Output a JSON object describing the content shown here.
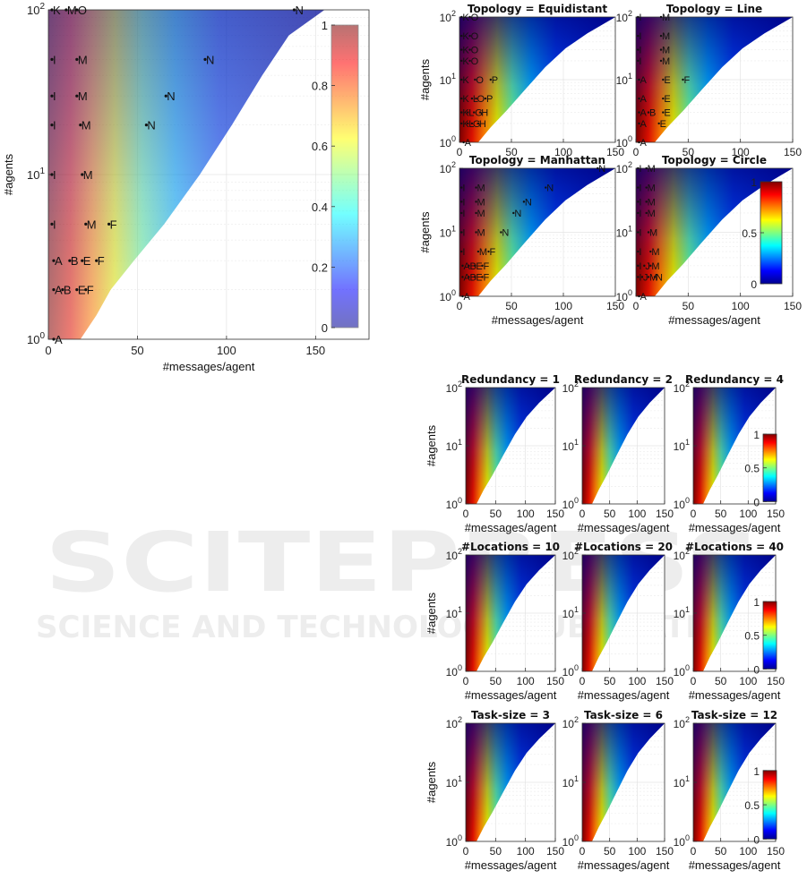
{
  "watermark": {
    "main": "SCITEPRESS",
    "sub": "SCIENCE AND TECHNOLOGY PUBLICATIONS"
  },
  "axis_labels": {
    "x": "#messages/agent",
    "y": "#agents"
  },
  "colors": {
    "empty": "#ffffff",
    "low": "#00008f",
    "high": "#800000"
  },
  "chart_data": [
    {
      "type": "heatmap",
      "colormap": "jet-transparent",
      "alpha": 0.55,
      "title": "",
      "xlabel": "#messages/agent",
      "ylabel": "#agents",
      "xlim": [
        0,
        180
      ],
      "ylim": [
        1,
        100
      ],
      "yscale": "log",
      "xticks": [
        0,
        50,
        100,
        150
      ],
      "yticks": [
        1,
        10,
        100
      ],
      "boundary": {
        "x": [
          18,
          27,
          35,
          48,
          65,
          85,
          103,
          120,
          135,
          155
        ],
        "y": [
          1,
          1.4,
          2,
          3,
          5,
          10,
          20,
          40,
          70,
          100
        ]
      },
      "colorbar": {
        "ticks": [
          0,
          0.2,
          0.4,
          0.6,
          0.8,
          1
        ],
        "ticklabels": [
          "0",
          "0.2",
          "0.4",
          "0.6",
          "0.8",
          "1"
        ]
      },
      "points": [
        {
          "label": "K",
          "x": 2,
          "y": 100
        },
        {
          "label": "M",
          "x": 10,
          "y": 100
        },
        {
          "label": "O",
          "x": 16,
          "y": 100
        },
        {
          "label": "N",
          "x": 138,
          "y": 100
        },
        {
          "label": "I",
          "x": 2,
          "y": 50
        },
        {
          "label": "M",
          "x": 16,
          "y": 50
        },
        {
          "label": "N",
          "x": 88,
          "y": 50
        },
        {
          "label": "I",
          "x": 2,
          "y": 30
        },
        {
          "label": "M",
          "x": 16,
          "y": 30
        },
        {
          "label": "N",
          "x": 66,
          "y": 30
        },
        {
          "label": "I",
          "x": 2,
          "y": 20
        },
        {
          "label": "M",
          "x": 18,
          "y": 20
        },
        {
          "label": "N",
          "x": 55,
          "y": 20
        },
        {
          "label": "I",
          "x": 2,
          "y": 10
        },
        {
          "label": "M",
          "x": 19,
          "y": 10
        },
        {
          "label": "I",
          "x": 2,
          "y": 5
        },
        {
          "label": "M",
          "x": 21,
          "y": 5
        },
        {
          "label": "F",
          "x": 34,
          "y": 5
        },
        {
          "label": "A",
          "x": 3,
          "y": 3
        },
        {
          "label": "B",
          "x": 12,
          "y": 3
        },
        {
          "label": "E",
          "x": 19,
          "y": 3
        },
        {
          "label": "F",
          "x": 27,
          "y": 3
        },
        {
          "label": "A",
          "x": 3,
          "y": 2
        },
        {
          "label": "B",
          "x": 8,
          "y": 2
        },
        {
          "label": "E",
          "x": 16,
          "y": 2
        },
        {
          "label": "F",
          "x": 21,
          "y": 2
        },
        {
          "label": "A",
          "x": 3,
          "y": 1
        }
      ]
    },
    {
      "type": "heatmap",
      "colormap": "jet",
      "title": "Topology = Equidistant",
      "xlabel": "",
      "ylabel": "#agents",
      "xlim": [
        0,
        150
      ],
      "ylim": [
        1,
        100
      ],
      "yscale": "log",
      "xticks": [
        0,
        50,
        100,
        150
      ],
      "yticks": [
        1,
        10,
        100
      ],
      "points": [
        {
          "label": "K",
          "x": 2,
          "y": 100
        },
        {
          "label": "O",
          "x": 10,
          "y": 100
        },
        {
          "label": "K",
          "x": 2,
          "y": 50
        },
        {
          "label": "O",
          "x": 10,
          "y": 50
        },
        {
          "label": "K",
          "x": 2,
          "y": 30
        },
        {
          "label": "O",
          "x": 10,
          "y": 30
        },
        {
          "label": "K",
          "x": 2,
          "y": 20
        },
        {
          "label": "O",
          "x": 10,
          "y": 20
        },
        {
          "label": "K",
          "x": 2,
          "y": 10
        },
        {
          "label": "O",
          "x": 15,
          "y": 10
        },
        {
          "label": "P",
          "x": 30,
          "y": 10
        },
        {
          "label": "K",
          "x": 2,
          "y": 5
        },
        {
          "label": "L",
          "x": 12,
          "y": 5
        },
        {
          "label": "O",
          "x": 16,
          "y": 5
        },
        {
          "label": "P",
          "x": 25,
          "y": 5
        },
        {
          "label": "K",
          "x": 2,
          "y": 3
        },
        {
          "label": "L",
          "x": 8,
          "y": 3
        },
        {
          "label": "G",
          "x": 14,
          "y": 3
        },
        {
          "label": "H",
          "x": 20,
          "y": 3
        },
        {
          "label": "K",
          "x": 2,
          "y": 2
        },
        {
          "label": "L",
          "x": 8,
          "y": 2
        },
        {
          "label": "G",
          "x": 12,
          "y": 2
        },
        {
          "label": "H",
          "x": 18,
          "y": 2
        },
        {
          "label": "A",
          "x": 4,
          "y": 1
        }
      ]
    },
    {
      "type": "heatmap",
      "colormap": "jet",
      "title": "Topology = Line",
      "xlabel": "",
      "ylabel": "",
      "xlim": [
        0,
        150
      ],
      "ylim": [
        1,
        100
      ],
      "yscale": "log",
      "xticks": [
        0,
        50,
        100,
        150
      ],
      "yticks": [
        1,
        10,
        100
      ],
      "points": [
        {
          "label": "I",
          "x": 2,
          "y": 100
        },
        {
          "label": "M",
          "x": 24,
          "y": 100
        },
        {
          "label": "I",
          "x": 2,
          "y": 50
        },
        {
          "label": "M",
          "x": 24,
          "y": 50
        },
        {
          "label": "I",
          "x": 2,
          "y": 30
        },
        {
          "label": "M",
          "x": 24,
          "y": 30
        },
        {
          "label": "I",
          "x": 2,
          "y": 20
        },
        {
          "label": "M",
          "x": 24,
          "y": 20
        },
        {
          "label": "A",
          "x": 3,
          "y": 10
        },
        {
          "label": "E",
          "x": 26,
          "y": 10
        },
        {
          "label": "F",
          "x": 45,
          "y": 10
        },
        {
          "label": "A",
          "x": 3,
          "y": 5
        },
        {
          "label": "E",
          "x": 26,
          "y": 5
        },
        {
          "label": "A",
          "x": 3,
          "y": 3
        },
        {
          "label": "B",
          "x": 12,
          "y": 3
        },
        {
          "label": "E",
          "x": 26,
          "y": 3
        },
        {
          "label": "A",
          "x": 3,
          "y": 2
        },
        {
          "label": "E",
          "x": 22,
          "y": 2
        },
        {
          "label": "A",
          "x": 3,
          "y": 1
        }
      ]
    },
    {
      "type": "heatmap",
      "colormap": "jet",
      "title": "Topology = Manhattan",
      "xlabel": "#messages/agent",
      "ylabel": "#agents",
      "xlim": [
        0,
        150
      ],
      "ylim": [
        1,
        100
      ],
      "yscale": "log",
      "xticks": [
        0,
        50,
        100,
        150
      ],
      "yticks": [
        1,
        10,
        100
      ],
      "points": [
        {
          "label": "N",
          "x": 133,
          "y": 100
        },
        {
          "label": "I",
          "x": 2,
          "y": 50
        },
        {
          "label": "M",
          "x": 16,
          "y": 50
        },
        {
          "label": "N",
          "x": 83,
          "y": 50
        },
        {
          "label": "I",
          "x": 2,
          "y": 30
        },
        {
          "label": "M",
          "x": 16,
          "y": 30
        },
        {
          "label": "N",
          "x": 62,
          "y": 30
        },
        {
          "label": "I",
          "x": 2,
          "y": 20
        },
        {
          "label": "M",
          "x": 16,
          "y": 20
        },
        {
          "label": "N",
          "x": 52,
          "y": 20
        },
        {
          "label": "I",
          "x": 2,
          "y": 10
        },
        {
          "label": "M",
          "x": 16,
          "y": 10
        },
        {
          "label": "N",
          "x": 40,
          "y": 10
        },
        {
          "label": "I",
          "x": 2,
          "y": 5
        },
        {
          "label": "M",
          "x": 18,
          "y": 5
        },
        {
          "label": "F",
          "x": 28,
          "y": 5
        },
        {
          "label": "A",
          "x": 3,
          "y": 3
        },
        {
          "label": "B",
          "x": 9,
          "y": 3
        },
        {
          "label": "E",
          "x": 15,
          "y": 3
        },
        {
          "label": "F",
          "x": 22,
          "y": 3
        },
        {
          "label": "A",
          "x": 3,
          "y": 2
        },
        {
          "label": "B",
          "x": 9,
          "y": 2
        },
        {
          "label": "E",
          "x": 15,
          "y": 2
        },
        {
          "label": "F",
          "x": 22,
          "y": 2
        },
        {
          "label": "A",
          "x": 3,
          "y": 1
        }
      ]
    },
    {
      "type": "heatmap",
      "colormap": "jet",
      "title": "Topology = Circle",
      "xlabel": "#messages/agent",
      "ylabel": "",
      "xlim": [
        0,
        150
      ],
      "ylim": [
        1,
        100
      ],
      "yscale": "log",
      "xticks": [
        0,
        50,
        100,
        150
      ],
      "yticks": [
        1,
        10,
        100
      ],
      "colorbar": {
        "ticks": [
          0,
          0.5,
          1
        ],
        "ticklabels": [
          "0",
          "0.5",
          "1"
        ]
      },
      "points": [
        {
          "label": "I",
          "x": 2,
          "y": 100
        },
        {
          "label": "M",
          "x": 10,
          "y": 100
        },
        {
          "label": "I",
          "x": 2,
          "y": 50
        },
        {
          "label": "M",
          "x": 10,
          "y": 50
        },
        {
          "label": "I",
          "x": 2,
          "y": 30
        },
        {
          "label": "M",
          "x": 10,
          "y": 30
        },
        {
          "label": "I",
          "x": 2,
          "y": 20
        },
        {
          "label": "M",
          "x": 10,
          "y": 20
        },
        {
          "label": "I",
          "x": 2,
          "y": 10
        },
        {
          "label": "M",
          "x": 12,
          "y": 10
        },
        {
          "label": "I",
          "x": 2,
          "y": 5
        },
        {
          "label": "M",
          "x": 14,
          "y": 5
        },
        {
          "label": "I",
          "x": 2,
          "y": 3
        },
        {
          "label": "J",
          "x": 8,
          "y": 3
        },
        {
          "label": "M",
          "x": 14,
          "y": 3
        },
        {
          "label": "I",
          "x": 2,
          "y": 2
        },
        {
          "label": "J",
          "x": 6,
          "y": 2
        },
        {
          "label": "M",
          "x": 12,
          "y": 2
        },
        {
          "label": "N",
          "x": 18,
          "y": 2
        },
        {
          "label": "A",
          "x": 3,
          "y": 1
        }
      ]
    },
    {
      "type": "heatmap",
      "colormap": "jet",
      "title": "Redundancy = 1",
      "xlabel": "#messages/agent",
      "ylabel": "#agents",
      "xlim": [
        0,
        150
      ],
      "ylim": [
        1,
        100
      ],
      "yscale": "log",
      "xticks": [
        0,
        50,
        100,
        150
      ],
      "yticks": [
        1,
        10,
        100
      ]
    },
    {
      "type": "heatmap",
      "colormap": "jet",
      "title": "Redundancy = 2",
      "xlabel": "#messages/agent",
      "ylabel": "",
      "xlim": [
        0,
        150
      ],
      "ylim": [
        1,
        100
      ],
      "yscale": "log",
      "xticks": [
        0,
        50,
        100,
        150
      ],
      "yticks": [
        1,
        10,
        100
      ]
    },
    {
      "type": "heatmap",
      "colormap": "jet",
      "title": "Redundancy = 4",
      "xlabel": "#messages/agent",
      "ylabel": "",
      "xlim": [
        0,
        150
      ],
      "ylim": [
        1,
        100
      ],
      "yscale": "log",
      "xticks": [
        0,
        50,
        100,
        150
      ],
      "yticks": [
        1,
        10,
        100
      ],
      "colorbar": {
        "ticks": [
          0,
          0.5,
          1
        ],
        "ticklabels": [
          "0",
          "0.5",
          "1"
        ]
      }
    },
    {
      "type": "heatmap",
      "colormap": "jet",
      "title": "#Locations = 10",
      "xlabel": "#messages/agent",
      "ylabel": "#agents",
      "xlim": [
        0,
        150
      ],
      "ylim": [
        1,
        100
      ],
      "yscale": "log",
      "xticks": [
        0,
        50,
        100,
        150
      ],
      "yticks": [
        1,
        10,
        100
      ]
    },
    {
      "type": "heatmap",
      "colormap": "jet",
      "title": "#Locations = 20",
      "xlabel": "#messages/agent",
      "ylabel": "",
      "xlim": [
        0,
        150
      ],
      "ylim": [
        1,
        100
      ],
      "yscale": "log",
      "xticks": [
        0,
        50,
        100,
        150
      ],
      "yticks": [
        1,
        10,
        100
      ]
    },
    {
      "type": "heatmap",
      "colormap": "jet",
      "title": "#Locations = 40",
      "xlabel": "#messages/agent",
      "ylabel": "",
      "xlim": [
        0,
        150
      ],
      "ylim": [
        1,
        100
      ],
      "yscale": "log",
      "xticks": [
        0,
        50,
        100,
        150
      ],
      "yticks": [
        1,
        10,
        100
      ],
      "colorbar": {
        "ticks": [
          0,
          0.5,
          1
        ],
        "ticklabels": [
          "0",
          "0.5",
          "1"
        ]
      }
    },
    {
      "type": "heatmap",
      "colormap": "jet",
      "title": "Task-size = 3",
      "xlabel": "#messages/agent",
      "ylabel": "#agents",
      "xlim": [
        0,
        150
      ],
      "ylim": [
        1,
        100
      ],
      "yscale": "log",
      "xticks": [
        0,
        50,
        100,
        150
      ],
      "yticks": [
        1,
        10,
        100
      ]
    },
    {
      "type": "heatmap",
      "colormap": "jet",
      "title": "Task-size = 6",
      "xlabel": "#messages/agent",
      "ylabel": "",
      "xlim": [
        0,
        150
      ],
      "ylim": [
        1,
        100
      ],
      "yscale": "log",
      "xticks": [
        0,
        50,
        100,
        150
      ],
      "yticks": [
        1,
        10,
        100
      ]
    },
    {
      "type": "heatmap",
      "colormap": "jet",
      "title": "Task-size = 12",
      "xlabel": "#messages/agent",
      "ylabel": "",
      "xlim": [
        0,
        150
      ],
      "ylim": [
        1,
        100
      ],
      "yscale": "log",
      "xticks": [
        0,
        50,
        100,
        150
      ],
      "yticks": [
        1,
        10,
        100
      ],
      "colorbar": {
        "ticks": [
          0,
          0.5,
          1
        ],
        "ticklabels": [
          "0",
          "0.5",
          "1"
        ]
      }
    }
  ]
}
